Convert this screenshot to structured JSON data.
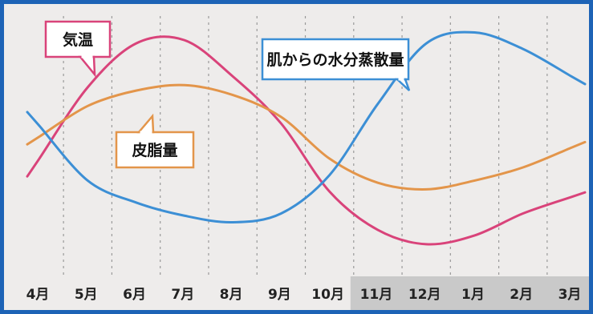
{
  "chart_data": {
    "type": "line",
    "categories": [
      "4月",
      "5月",
      "6月",
      "7月",
      "8月",
      "9月",
      "10月",
      "11月",
      "12月",
      "1月",
      "2月",
      "3月"
    ],
    "shaded_categories": [
      "11月",
      "12月",
      "1月",
      "2月",
      "3月"
    ],
    "series": [
      {
        "name": "気温",
        "color": "#d9437a",
        "values": [
          -0.2,
          0.45,
          0.85,
          0.88,
          0.55,
          0.12,
          -0.5,
          -0.85,
          -0.98,
          -0.9,
          -0.7,
          -0.55
        ]
      },
      {
        "name": "皮脂量",
        "color": "#e3954a",
        "values": [
          0.0,
          0.28,
          0.42,
          0.47,
          0.38,
          0.18,
          -0.2,
          -0.42,
          -0.48,
          -0.4,
          -0.28,
          -0.1
        ]
      },
      {
        "name": "肌からの水分蒸散量",
        "color": "#3c8fd5",
        "values": [
          0.1,
          -0.4,
          -0.6,
          -0.72,
          -0.78,
          -0.7,
          -0.35,
          0.3,
          0.85,
          0.95,
          0.8,
          0.55
        ]
      }
    ],
    "ylim": [
      -1.2,
      1.1
    ],
    "grid": "vertical-dashed",
    "title": "",
    "xlabel": "",
    "ylabel": ""
  }
}
